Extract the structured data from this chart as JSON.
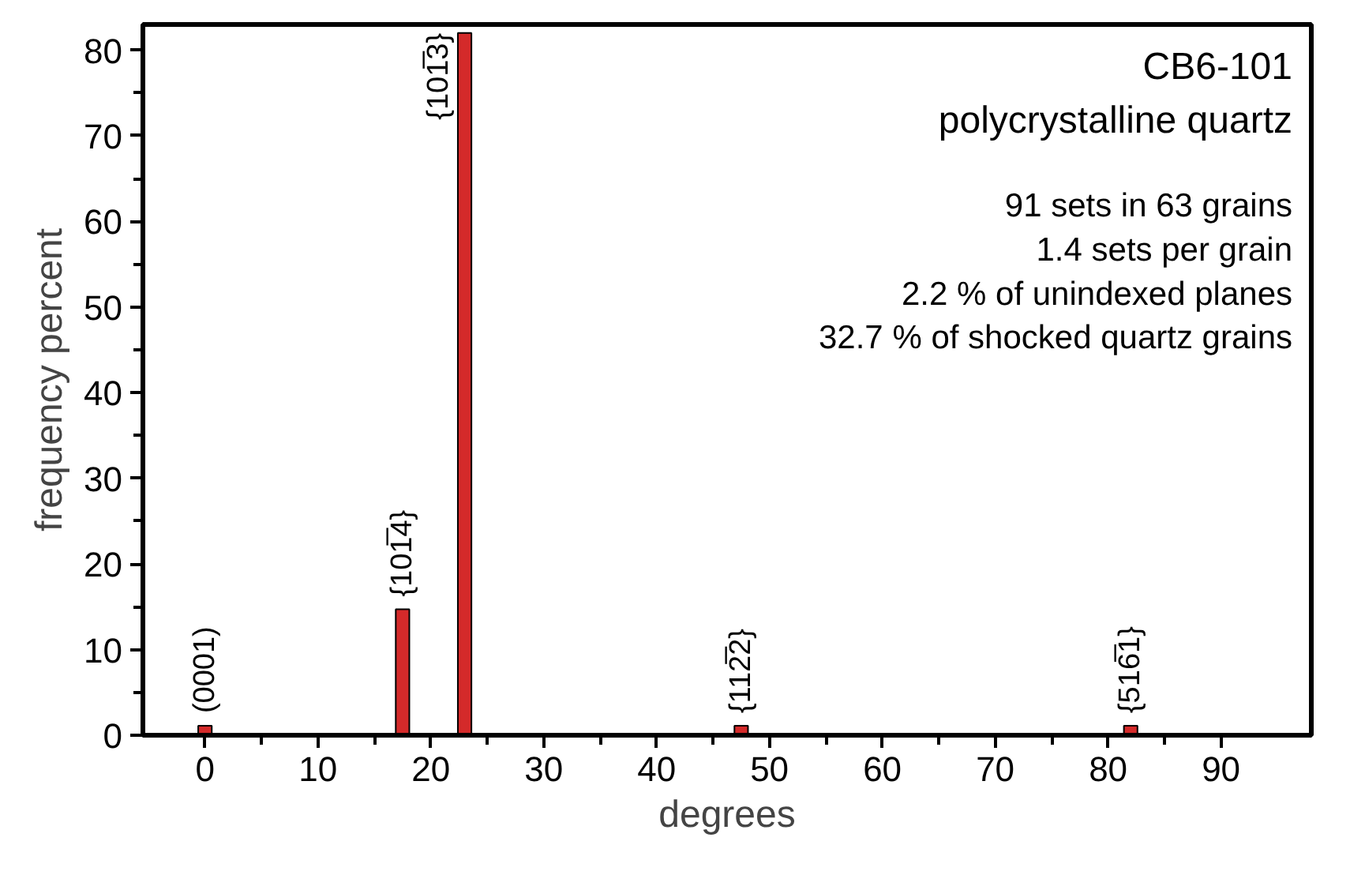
{
  "chart_data": {
    "type": "bar",
    "title": "CB6-101",
    "subtitle": "polycrystalline quartz",
    "xlabel": "degrees",
    "ylabel": "frequency percent",
    "x": [
      0,
      17.5,
      23,
      47.5,
      82
    ],
    "values": [
      1.1,
      14.7,
      82,
      1.1,
      1.1
    ],
    "color": "#d42a2a",
    "xlim": [
      -5.5,
      98
    ],
    "xticks": [
      0,
      10,
      20,
      30,
      40,
      50,
      60,
      70,
      80,
      90
    ],
    "ylim": [
      0,
      83
    ],
    "yticks": [
      0,
      10,
      20,
      30,
      40,
      50,
      60,
      70,
      80
    ],
    "grid": false,
    "annotations": [
      "91 sets in 63 grains",
      "1.4 sets per grain",
      "2.2 % of unindexed planes",
      "32.7 % of shocked quartz grains",
      {
        "text": "(0001)",
        "x": 0,
        "y": 1.1
      },
      {
        "text": "{101̅4}",
        "x": 17.5,
        "y": 14.7
      },
      {
        "text": "{101̅3}",
        "x": 23,
        "y": 82
      },
      {
        "text": "{112̅2}",
        "x": 47.5,
        "y": 1.1
      },
      {
        "text": "{516̅1}",
        "x": 82,
        "y": 1.1
      }
    ]
  }
}
